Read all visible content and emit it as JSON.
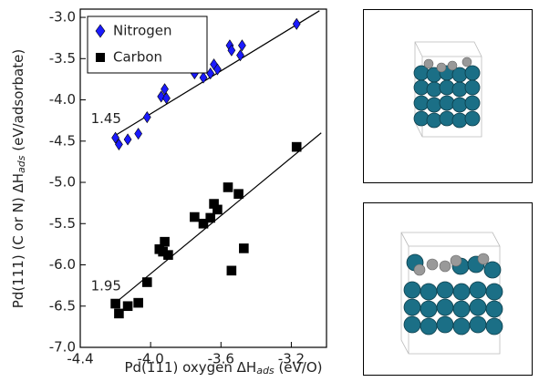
{
  "chart_data": {
    "type": "scatter",
    "x_label": [
      "Pd(111) oxygen ΔH",
      "ads",
      " (eV/O)"
    ],
    "y_label": [
      "Pd(111) (C or N) ΔH",
      "ads",
      " (eV/adsorbate)"
    ],
    "xlim": [
      -4.4,
      -3.0
    ],
    "ylim": [
      -7.0,
      -2.9
    ],
    "xticks": [
      -4.4,
      {
        "value": -4.0,
        "label": "-4.0"
      },
      -3.6,
      -3.2
    ],
    "yticks": [
      {
        "value": -3.0,
        "label": "-3.0"
      },
      -3.5,
      {
        "value": -4.0,
        "label": "-4.0"
      },
      -4.5,
      {
        "value": -5.0,
        "label": "-5.0"
      },
      -5.5,
      {
        "value": -6.0,
        "label": "-6.0"
      },
      -6.5,
      {
        "value": -7.0,
        "label": "-7.0"
      }
    ],
    "legend": "upper left",
    "series": [
      {
        "name": "Nitrogen",
        "color": "#1a1aff",
        "marker": "diamond",
        "x": [
          -4.2,
          -4.18,
          -4.13,
          -4.07,
          -4.02,
          -3.94,
          -3.92,
          -3.91,
          -3.75,
          -3.7,
          -3.66,
          -3.64,
          -3.62,
          -3.55,
          -3.54,
          -3.49,
          -3.48,
          -3.17
        ],
        "values": [
          -4.46,
          -4.54,
          -4.48,
          -4.41,
          -4.21,
          -3.96,
          -3.87,
          -3.98,
          -3.68,
          -3.73,
          -3.68,
          -3.57,
          -3.63,
          -3.34,
          -3.4,
          -3.46,
          -3.34,
          -3.08
        ],
        "fit": {
          "x": [
            -4.2,
            -3.04
          ],
          "y": [
            -4.43,
            -2.92
          ]
        },
        "annotation": "1.45"
      },
      {
        "name": "Carbon",
        "color": "#000000",
        "marker": "square",
        "x": [
          -4.2,
          -4.18,
          -4.13,
          -4.07,
          -4.02,
          -3.95,
          -3.93,
          -3.92,
          -3.9,
          -3.75,
          -3.7,
          -3.66,
          -3.64,
          -3.62,
          -3.56,
          -3.54,
          -3.5,
          -3.47,
          -3.17
        ],
        "values": [
          -6.47,
          -6.59,
          -6.5,
          -6.46,
          -6.21,
          -5.81,
          -5.84,
          -5.72,
          -5.88,
          -5.42,
          -5.5,
          -5.43,
          -5.26,
          -5.33,
          -5.06,
          -6.07,
          -5.14,
          -5.8,
          -4.57
        ],
        "fit": {
          "x": [
            -4.2,
            -3.03
          ],
          "y": [
            -6.46,
            -4.4
          ]
        },
        "annotation": "1.95"
      }
    ]
  }
}
